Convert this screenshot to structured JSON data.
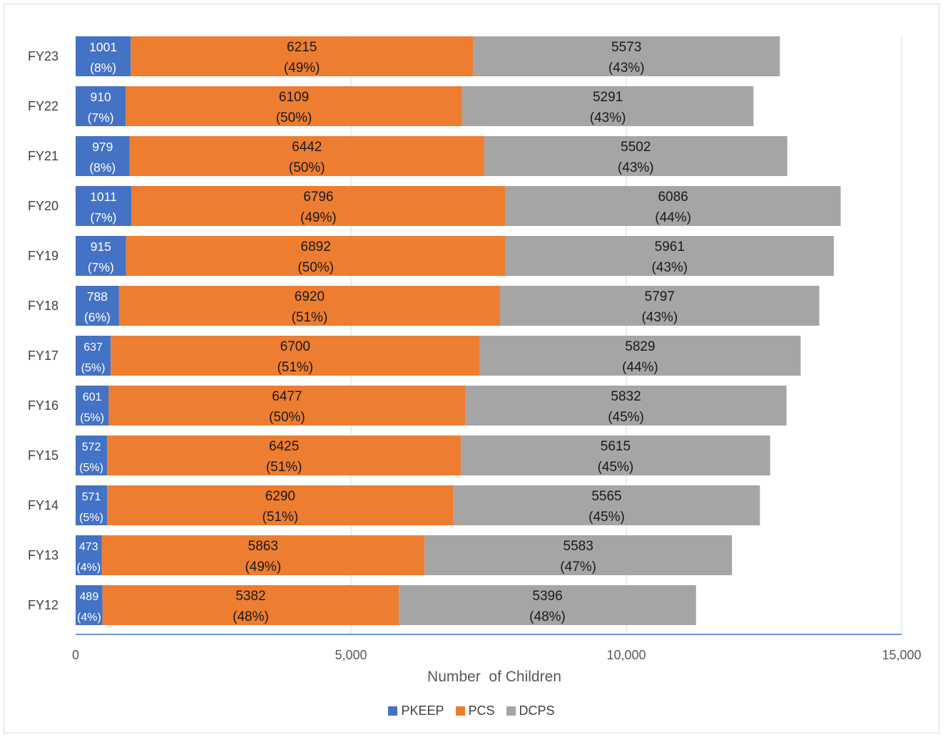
{
  "chart_data": {
    "type": "bar",
    "orientation": "horizontal",
    "stacked": true,
    "categories": [
      "FY23",
      "FY22",
      "FY21",
      "FY20",
      "FY19",
      "FY18",
      "FY17",
      "FY16",
      "FY15",
      "FY14",
      "FY13",
      "FY12"
    ],
    "series": [
      {
        "name": "PKEEP",
        "color": "#4472c4",
        "values": [
          1001,
          910,
          979,
          1011,
          915,
          788,
          637,
          601,
          572,
          571,
          473,
          489
        ],
        "percents": [
          "(8%)",
          "(7%)",
          "(8%)",
          "(7%)",
          "(7%)",
          "(6%)",
          "(5%)",
          "(5%)",
          "(5%)",
          "(5%)",
          "(4%)",
          "(4%)"
        ]
      },
      {
        "name": "PCS",
        "color": "#ed7d31",
        "values": [
          6215,
          6109,
          6442,
          6796,
          6892,
          6920,
          6700,
          6477,
          6425,
          6290,
          5863,
          5382
        ],
        "percents": [
          "(49%)",
          "(50%)",
          "(50%)",
          "(49%)",
          "(50%)",
          "(51%)",
          "(51%)",
          "(50%)",
          "(51%)",
          "(51%)",
          "(49%)",
          "(48%)"
        ]
      },
      {
        "name": "DCPS",
        "color": "#a5a5a5",
        "values": [
          5573,
          5291,
          5502,
          6086,
          5961,
          5797,
          5829,
          5832,
          5615,
          5565,
          5583,
          5396
        ],
        "percents": [
          "(43%)",
          "(43%)",
          "(43%)",
          "(44%)",
          "(43%)",
          "(43%)",
          "(44%)",
          "(45%)",
          "(45%)",
          "(45%)",
          "(47%)",
          "(48%)"
        ]
      }
    ],
    "xlabel": "Number  of Children",
    "ylabel": "",
    "xlim": [
      0,
      15000
    ],
    "xticks": [
      0,
      5000,
      10000,
      15000
    ],
    "xtick_labels": [
      "0",
      "5,000",
      "10,000",
      "15,000"
    ],
    "grid": "vertical",
    "legend_position": "bottom"
  }
}
